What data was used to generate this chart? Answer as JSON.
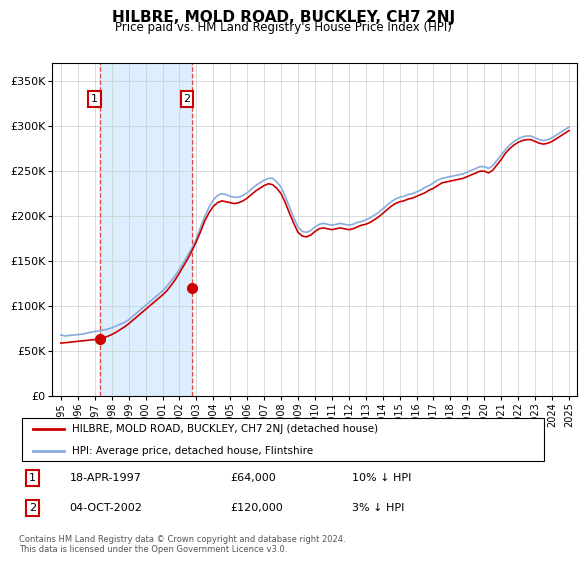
{
  "title": "HILBRE, MOLD ROAD, BUCKLEY, CH7 2NJ",
  "subtitle": "Price paid vs. HM Land Registry's House Price Index (HPI)",
  "sale1_date": "18-APR-1997",
  "sale1_price": 64000,
  "sale1_label": "10% ↓ HPI",
  "sale1_year": 1997.29,
  "sale2_date": "04-OCT-2002",
  "sale2_price": 120000,
  "sale2_label": "3% ↓ HPI",
  "sale2_year": 2002.75,
  "hpi_line_color": "#88aadd",
  "price_line_color": "#cc0000",
  "sale_dot_color": "#cc0000",
  "shade_color": "#ddeeff",
  "dashed_color": "#dd4444",
  "legend_label_red": "HILBRE, MOLD ROAD, BUCKLEY, CH7 2NJ (detached house)",
  "legend_label_blue": "HPI: Average price, detached house, Flintshire",
  "footer": "Contains HM Land Registry data © Crown copyright and database right 2024.\nThis data is licensed under the Open Government Licence v3.0.",
  "ylim": [
    0,
    370000
  ],
  "yticks": [
    0,
    50000,
    100000,
    150000,
    200000,
    250000,
    300000,
    350000
  ],
  "ytick_labels": [
    "£0",
    "£50K",
    "£100K",
    "£150K",
    "£200K",
    "£250K",
    "£300K",
    "£350K"
  ],
  "xlim_start": 1994.5,
  "xlim_end": 2025.5,
  "xtick_years": [
    1995,
    1996,
    1997,
    1998,
    1999,
    2000,
    2001,
    2002,
    2003,
    2004,
    2005,
    2006,
    2007,
    2008,
    2009,
    2010,
    2011,
    2012,
    2013,
    2014,
    2015,
    2016,
    2017,
    2018,
    2019,
    2020,
    2021,
    2022,
    2023,
    2024,
    2025
  ],
  "hpi_data": {
    "years": [
      1995.0,
      1995.25,
      1995.5,
      1995.75,
      1996.0,
      1996.25,
      1996.5,
      1996.75,
      1997.0,
      1997.25,
      1997.5,
      1997.75,
      1998.0,
      1998.25,
      1998.5,
      1998.75,
      1999.0,
      1999.25,
      1999.5,
      1999.75,
      2000.0,
      2000.25,
      2000.5,
      2000.75,
      2001.0,
      2001.25,
      2001.5,
      2001.75,
      2002.0,
      2002.25,
      2002.5,
      2002.75,
      2003.0,
      2003.25,
      2003.5,
      2003.75,
      2004.0,
      2004.25,
      2004.5,
      2004.75,
      2005.0,
      2005.25,
      2005.5,
      2005.75,
      2006.0,
      2006.25,
      2006.5,
      2006.75,
      2007.0,
      2007.25,
      2007.5,
      2007.75,
      2008.0,
      2008.25,
      2008.5,
      2008.75,
      2009.0,
      2009.25,
      2009.5,
      2009.75,
      2010.0,
      2010.25,
      2010.5,
      2010.75,
      2011.0,
      2011.25,
      2011.5,
      2011.75,
      2012.0,
      2012.25,
      2012.5,
      2012.75,
      2013.0,
      2013.25,
      2013.5,
      2013.75,
      2014.0,
      2014.25,
      2014.5,
      2014.75,
      2015.0,
      2015.25,
      2015.5,
      2015.75,
      2016.0,
      2016.25,
      2016.5,
      2016.75,
      2017.0,
      2017.25,
      2017.5,
      2017.75,
      2018.0,
      2018.25,
      2018.5,
      2018.75,
      2019.0,
      2019.25,
      2019.5,
      2019.75,
      2020.0,
      2020.25,
      2020.5,
      2020.75,
      2021.0,
      2021.25,
      2021.5,
      2021.75,
      2022.0,
      2022.25,
      2022.5,
      2022.75,
      2023.0,
      2023.25,
      2023.5,
      2023.75,
      2024.0,
      2024.25,
      2024.5,
      2024.75,
      2025.0
    ],
    "values": [
      68000,
      67000,
      67500,
      68000,
      68500,
      69000,
      70000,
      71000,
      72000,
      72500,
      73500,
      74500,
      76000,
      78000,
      80000,
      82000,
      85000,
      89000,
      93000,
      97000,
      101000,
      105000,
      109000,
      113000,
      117000,
      122000,
      128000,
      134000,
      141000,
      149000,
      157000,
      165000,
      175000,
      188000,
      200000,
      210000,
      218000,
      223000,
      225000,
      224000,
      222000,
      221000,
      221000,
      223000,
      226000,
      230000,
      234000,
      237000,
      240000,
      242000,
      242000,
      238000,
      232000,
      222000,
      210000,
      198000,
      188000,
      183000,
      182000,
      184000,
      188000,
      191000,
      192000,
      191000,
      190000,
      191000,
      192000,
      191000,
      190000,
      191000,
      193000,
      194000,
      196000,
      198000,
      201000,
      204000,
      208000,
      212000,
      216000,
      219000,
      221000,
      222000,
      224000,
      225000,
      227000,
      229000,
      232000,
      234000,
      237000,
      240000,
      242000,
      243000,
      244000,
      245000,
      246000,
      247000,
      249000,
      251000,
      253000,
      255000,
      255000,
      253000,
      256000,
      262000,
      268000,
      274000,
      279000,
      283000,
      286000,
      288000,
      289000,
      289000,
      287000,
      285000,
      284000,
      285000,
      287000,
      290000,
      293000,
      296000,
      299000
    ]
  },
  "price_data": {
    "years": [
      1995.0,
      1995.25,
      1995.5,
      1995.75,
      1996.0,
      1996.25,
      1996.5,
      1996.75,
      1997.0,
      1997.25,
      1997.5,
      1997.75,
      1998.0,
      1998.25,
      1998.5,
      1998.75,
      1999.0,
      1999.25,
      1999.5,
      1999.75,
      2000.0,
      2000.25,
      2000.5,
      2000.75,
      2001.0,
      2001.25,
      2001.5,
      2001.75,
      2002.0,
      2002.25,
      2002.5,
      2002.75,
      2003.0,
      2003.25,
      2003.5,
      2003.75,
      2004.0,
      2004.25,
      2004.5,
      2004.75,
      2005.0,
      2005.25,
      2005.5,
      2005.75,
      2006.0,
      2006.25,
      2006.5,
      2006.75,
      2007.0,
      2007.25,
      2007.5,
      2007.75,
      2008.0,
      2008.25,
      2008.5,
      2008.75,
      2009.0,
      2009.25,
      2009.5,
      2009.75,
      2010.0,
      2010.25,
      2010.5,
      2010.75,
      2011.0,
      2011.25,
      2011.5,
      2011.75,
      2012.0,
      2012.25,
      2012.5,
      2012.75,
      2013.0,
      2013.25,
      2013.5,
      2013.75,
      2014.0,
      2014.25,
      2014.5,
      2014.75,
      2015.0,
      2015.25,
      2015.5,
      2015.75,
      2016.0,
      2016.25,
      2016.5,
      2016.75,
      2017.0,
      2017.25,
      2017.5,
      2017.75,
      2018.0,
      2018.25,
      2018.5,
      2018.75,
      2019.0,
      2019.25,
      2019.5,
      2019.75,
      2020.0,
      2020.25,
      2020.5,
      2020.75,
      2021.0,
      2021.25,
      2021.5,
      2021.75,
      2022.0,
      2022.25,
      2022.5,
      2022.75,
      2023.0,
      2023.25,
      2023.5,
      2023.75,
      2024.0,
      2024.25,
      2024.5,
      2024.75,
      2025.0
    ],
    "values": [
      59000,
      59500,
      60000,
      60500,
      61000,
      61500,
      62000,
      62500,
      63000,
      64000,
      65000,
      66500,
      68500,
      71000,
      74000,
      77000,
      80500,
      84500,
      88500,
      92500,
      96500,
      100500,
      104500,
      108500,
      112500,
      117000,
      123000,
      129500,
      137000,
      145000,
      153000,
      162000,
      172000,
      183000,
      195000,
      204000,
      211000,
      215000,
      217000,
      216000,
      215000,
      214000,
      215000,
      217000,
      220000,
      224000,
      228000,
      231000,
      234000,
      236000,
      235000,
      231000,
      225000,
      215000,
      203000,
      192000,
      182000,
      178000,
      177000,
      179000,
      183000,
      186000,
      187000,
      186000,
      185000,
      186000,
      187000,
      186000,
      185000,
      186000,
      188000,
      190000,
      191000,
      193000,
      196000,
      199000,
      203000,
      207000,
      211000,
      214000,
      216000,
      217000,
      219000,
      220000,
      222000,
      224000,
      226000,
      229000,
      231000,
      234000,
      237000,
      238000,
      239000,
      240000,
      241000,
      242000,
      244000,
      246000,
      248000,
      250000,
      250000,
      248000,
      251000,
      257000,
      263000,
      270000,
      275000,
      279000,
      282000,
      284000,
      285000,
      285000,
      283000,
      281000,
      280000,
      281000,
      283000,
      286000,
      289000,
      292000,
      295000
    ]
  }
}
